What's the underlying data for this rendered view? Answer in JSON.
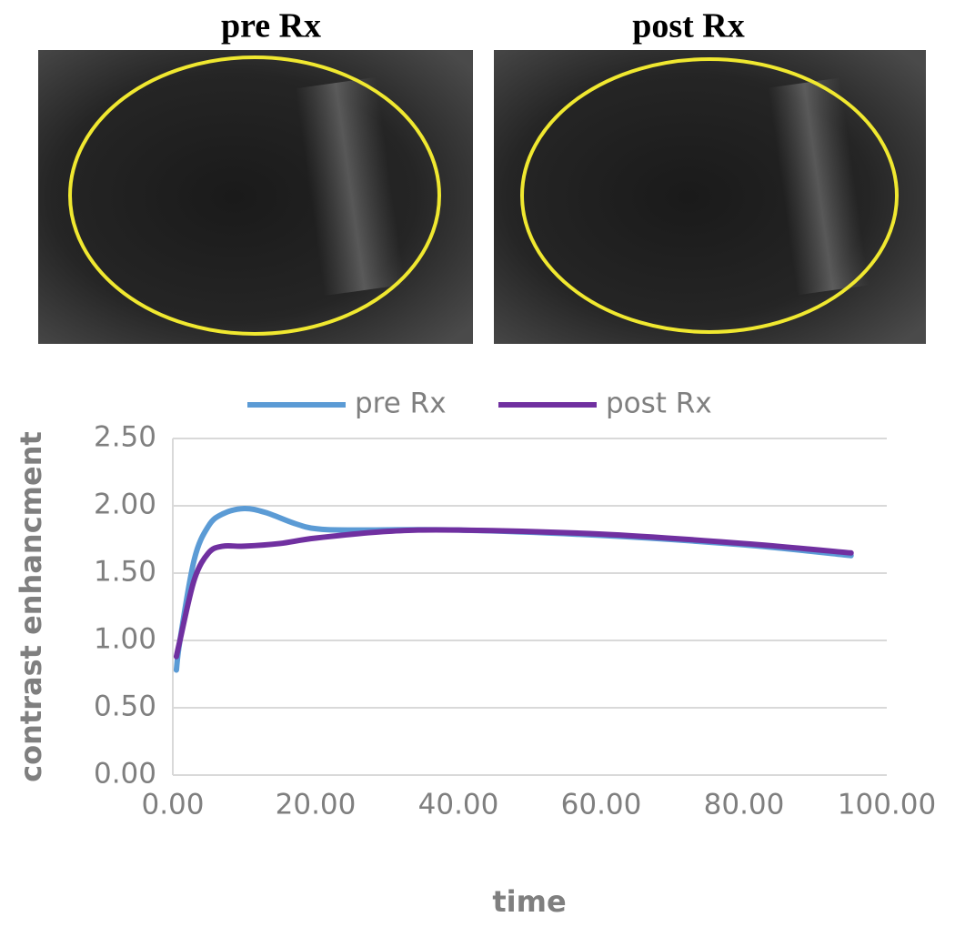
{
  "panels": [
    {
      "title": "pre Rx"
    },
    {
      "title": "post Rx"
    }
  ],
  "chart_data": {
    "type": "line",
    "x_label": "time",
    "y_label": "contrast enhancment",
    "series": [
      {
        "name": "pre Rx",
        "color": "#5b9bd5",
        "x": [
          0.5,
          1,
          3,
          5,
          7,
          10,
          13,
          17,
          20,
          25,
          40,
          60,
          80,
          95
        ],
        "values": [
          0.78,
          1.0,
          1.6,
          1.85,
          1.94,
          1.98,
          1.95,
          1.87,
          1.83,
          1.82,
          1.82,
          1.78,
          1.71,
          1.63
        ]
      },
      {
        "name": "post Rx",
        "color": "#7030a0",
        "x": [
          0.5,
          1,
          3,
          5,
          7,
          10,
          15,
          20,
          30,
          40,
          60,
          80,
          95
        ],
        "values": [
          0.88,
          1.0,
          1.45,
          1.65,
          1.7,
          1.7,
          1.72,
          1.76,
          1.81,
          1.82,
          1.79,
          1.72,
          1.65
        ]
      }
    ],
    "xlim": [
      0,
      100
    ],
    "xticks": [
      {
        "value": 0,
        "label": "0.00"
      },
      {
        "value": 20,
        "label": "20.00"
      },
      {
        "value": 40,
        "label": "40.00"
      },
      {
        "value": 60,
        "label": "60.00"
      },
      {
        "value": 80,
        "label": "80.00"
      },
      {
        "value": 100,
        "label": "100.00"
      }
    ],
    "ylim": [
      0,
      2.5
    ],
    "yticks": [
      {
        "value": 0,
        "label": "0.00"
      },
      {
        "value": 0.5,
        "label": "0.50"
      },
      {
        "value": 1,
        "label": "1.00"
      },
      {
        "value": 1.5,
        "label": "1.50"
      },
      {
        "value": 2,
        "label": "2.00"
      },
      {
        "value": 2.5,
        "label": "2.50"
      }
    ],
    "grid": true,
    "legend": "top"
  }
}
